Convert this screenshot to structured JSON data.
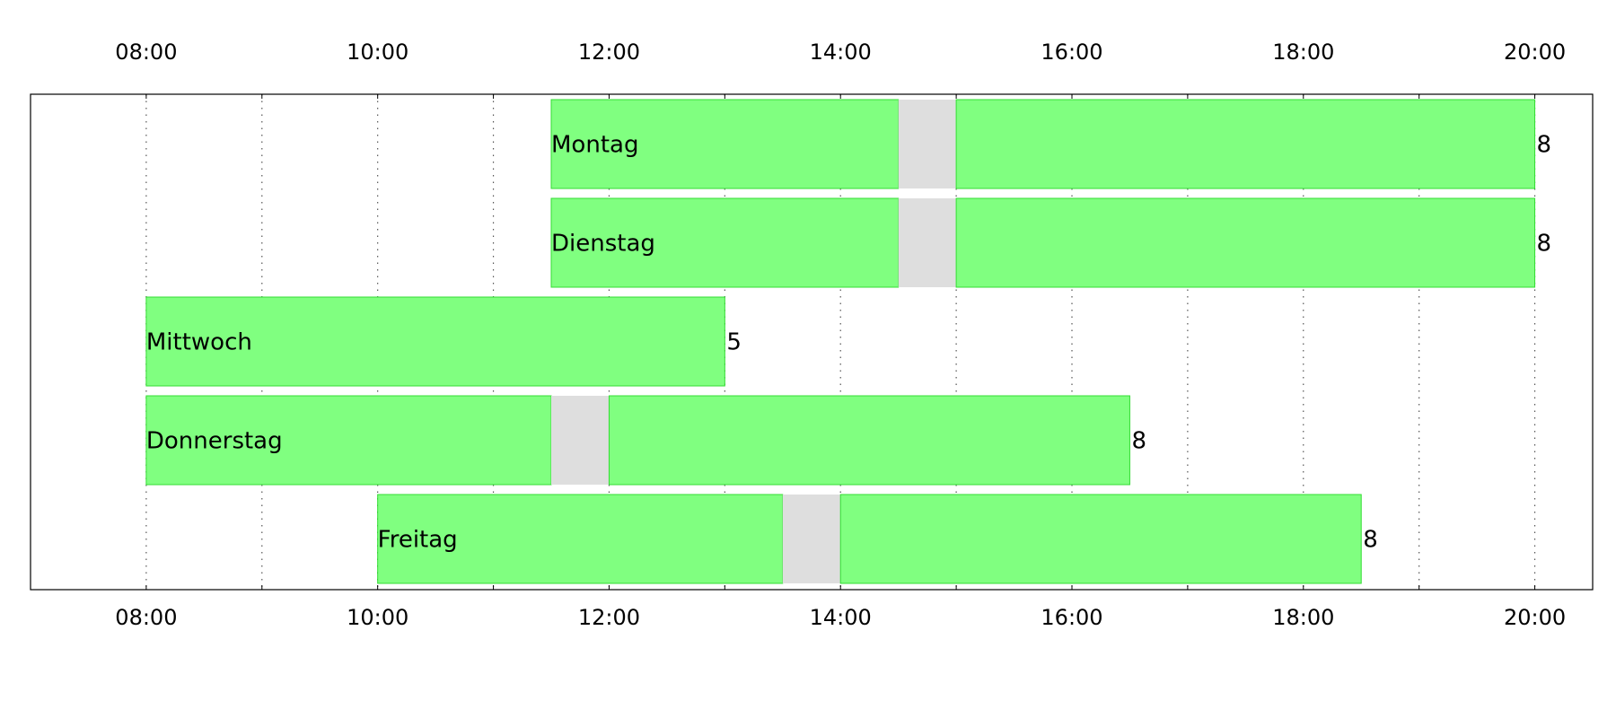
{
  "chart_data": {
    "type": "bar",
    "orientation": "horizontal",
    "x_unit": "hours",
    "xlim": [
      7.0,
      20.5
    ],
    "x_ticks": [
      "08:00",
      "10:00",
      "12:00",
      "14:00",
      "16:00",
      "18:00",
      "20:00"
    ],
    "x_tick_values": [
      8,
      10,
      12,
      14,
      16,
      18,
      20
    ],
    "grid_values": [
      8,
      9,
      10,
      11,
      12,
      13,
      14,
      15,
      16,
      17,
      18,
      19,
      20
    ],
    "grid": true,
    "x_ticks_top": true,
    "x_ticks_bottom": true,
    "colors": {
      "work": "#80ff80",
      "work_edge": "#33dd33",
      "break": "#dedede",
      "grid": "#555555"
    },
    "rows": [
      {
        "label": "Montag",
        "hours": "8",
        "segments": [
          {
            "kind": "work",
            "start": 11.5,
            "end": 14.5
          },
          {
            "kind": "break",
            "start": 14.5,
            "end": 15.0
          },
          {
            "kind": "work",
            "start": 15.0,
            "end": 20.0
          }
        ]
      },
      {
        "label": "Dienstag",
        "hours": "8",
        "segments": [
          {
            "kind": "work",
            "start": 11.5,
            "end": 14.5
          },
          {
            "kind": "break",
            "start": 14.5,
            "end": 15.0
          },
          {
            "kind": "work",
            "start": 15.0,
            "end": 20.0
          }
        ]
      },
      {
        "label": "Mittwoch",
        "hours": "5",
        "segments": [
          {
            "kind": "work",
            "start": 8.0,
            "end": 13.0
          }
        ]
      },
      {
        "label": "Donnerstag",
        "hours": "8",
        "segments": [
          {
            "kind": "work",
            "start": 8.0,
            "end": 11.5
          },
          {
            "kind": "break",
            "start": 11.5,
            "end": 12.0
          },
          {
            "kind": "work",
            "start": 12.0,
            "end": 16.5
          }
        ]
      },
      {
        "label": "Freitag",
        "hours": "8",
        "segments": [
          {
            "kind": "work",
            "start": 10.0,
            "end": 13.5
          },
          {
            "kind": "break",
            "start": 13.5,
            "end": 14.0
          },
          {
            "kind": "work",
            "start": 14.0,
            "end": 18.5
          }
        ]
      }
    ]
  }
}
